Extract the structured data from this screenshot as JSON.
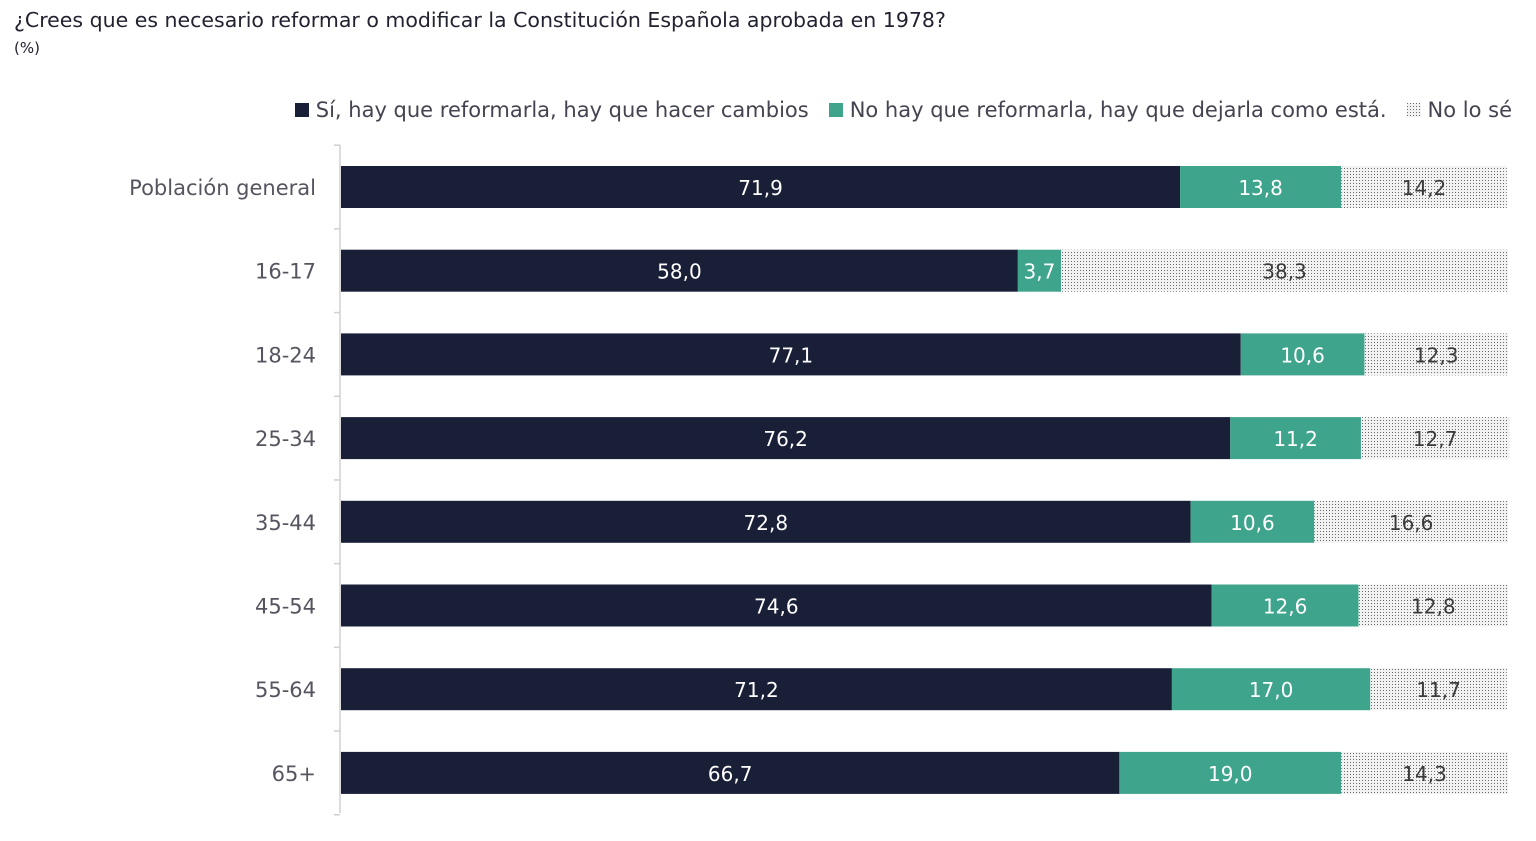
{
  "title": "¿Crees que es necesario reformar o modificar la Constitución Española aprobada en 1978?",
  "subtitle": "(%)",
  "colors": {
    "si": "#1a1f38",
    "no": "#3fa48c",
    "nose_bg": "#f2f2f2",
    "nose_dot": "#6b6b6b",
    "axis": "#d0d0d0"
  },
  "chart_data": {
    "type": "bar",
    "orientation": "horizontal",
    "stacked": true,
    "categories": [
      "Población general",
      "16-17",
      "18-24",
      "25-34",
      "35-44",
      "45-54",
      "55-64",
      "65+"
    ],
    "series": [
      {
        "name": "Sí, hay que reformarla, hay que hacer cambios",
        "values": [
          71.9,
          58.0,
          77.1,
          76.2,
          72.8,
          74.6,
          71.2,
          66.7
        ],
        "labels": [
          "71,9",
          "58,0",
          "77,1",
          "76,2",
          "72,8",
          "74,6",
          "71,2",
          "66,7"
        ]
      },
      {
        "name": "No hay que reformarla, hay que dejarla como está.",
        "values": [
          13.8,
          3.7,
          10.6,
          11.2,
          10.6,
          12.6,
          17.0,
          19.0
        ],
        "labels": [
          "13,8",
          "3,7",
          "10,6",
          "11,2",
          "10,6",
          "12,6",
          "17,0",
          "19,0"
        ]
      },
      {
        "name": "No lo sé",
        "values": [
          14.2,
          38.3,
          12.3,
          12.7,
          16.6,
          12.8,
          11.7,
          14.3
        ],
        "labels": [
          "14,2",
          "38,3",
          "12,3",
          "12,7",
          "16,6",
          "12,8",
          "11,7",
          "14,3"
        ]
      }
    ],
    "legend_position": "top-right",
    "grid": false,
    "xlim": [
      0,
      100
    ]
  }
}
